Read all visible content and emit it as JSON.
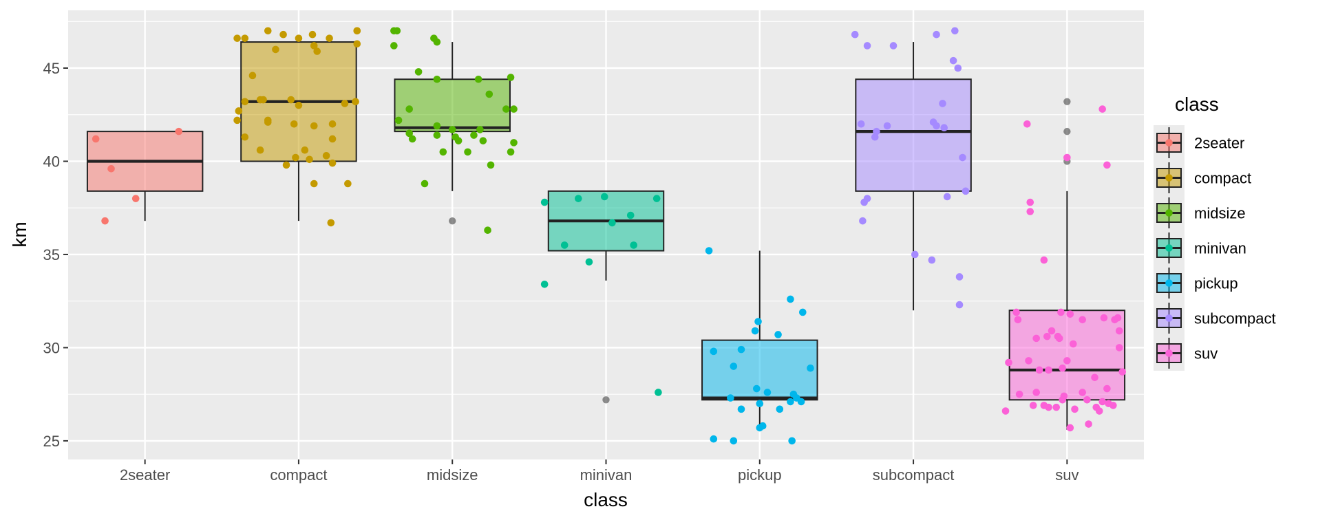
{
  "chart_data": {
    "type": "box",
    "xlabel": "class",
    "ylabel": "km",
    "ylim": [
      24.0,
      48.1
    ],
    "yticks": [
      25,
      30,
      35,
      40,
      45
    ],
    "grid": true,
    "legend": {
      "title": "class",
      "position": "right"
    },
    "categories": [
      "2seater",
      "compact",
      "midsize",
      "minivan",
      "pickup",
      "subcompact",
      "suv"
    ],
    "colors": {
      "2seater": "#F8766D",
      "compact": "#C49A00",
      "midsize": "#53B400",
      "minivan": "#00C094",
      "pickup": "#00B6EB",
      "subcompact": "#A58AFF",
      "suv": "#FB61D7"
    },
    "boxes": [
      {
        "class": "2seater",
        "q1": 38.4,
        "median": 40.0,
        "q3": 41.6,
        "whisker_low": 36.8,
        "whisker_high": 41.6,
        "outliers": []
      },
      {
        "class": "compact",
        "q1": 40.0,
        "median": 43.2,
        "q3": 46.4,
        "whisker_low": 36.8,
        "whisker_high": 46.4,
        "outliers": []
      },
      {
        "class": "midsize",
        "q1": 41.6,
        "median": 41.8,
        "q3": 44.4,
        "whisker_low": 38.4,
        "whisker_high": 46.4,
        "outliers": [
          36.8
        ]
      },
      {
        "class": "minivan",
        "q1": 35.2,
        "median": 36.8,
        "q3": 38.4,
        "whisker_low": 33.6,
        "whisker_high": 38.4,
        "outliers": [
          27.2
        ]
      },
      {
        "class": "pickup",
        "q1": 27.2,
        "median": 27.3,
        "q3": 30.4,
        "whisker_low": 25.6,
        "whisker_high": 35.2,
        "outliers": []
      },
      {
        "class": "subcompact",
        "q1": 38.4,
        "median": 41.6,
        "q3": 44.4,
        "whisker_low": 32.0,
        "whisker_high": 46.4,
        "outliers": []
      },
      {
        "class": "suv",
        "q1": 27.2,
        "median": 28.8,
        "q3": 32.0,
        "whisker_low": 25.6,
        "whisker_high": 38.4,
        "outliers": [
          43.2,
          41.6,
          40.0
        ]
      }
    ],
    "points": {
      "2seater": [
        [
          -0.32,
          41.2
        ],
        [
          0.22,
          41.6
        ],
        [
          -0.22,
          39.6
        ],
        [
          -0.06,
          38.0
        ],
        [
          -0.26,
          36.8
        ]
      ],
      "compact": [
        [
          -0.2,
          47.0
        ],
        [
          -0.1,
          46.8
        ],
        [
          0.09,
          46.8
        ],
        [
          0.0,
          46.6
        ],
        [
          0.2,
          46.6
        ],
        [
          -0.35,
          46.6
        ],
        [
          0.38,
          47.0
        ],
        [
          -0.4,
          46.6
        ],
        [
          0.38,
          47.0
        ],
        [
          0.1,
          46.2
        ],
        [
          0.38,
          46.3
        ],
        [
          0.12,
          45.9
        ],
        [
          -0.15,
          46.0
        ],
        [
          -0.3,
          44.6
        ],
        [
          -0.35,
          43.2
        ],
        [
          -0.25,
          43.3
        ],
        [
          -0.23,
          43.3
        ],
        [
          -0.05,
          43.3
        ],
        [
          0.0,
          43.0
        ],
        [
          0.3,
          43.1
        ],
        [
          0.37,
          43.2
        ],
        [
          -0.39,
          42.7
        ],
        [
          -0.4,
          42.2
        ],
        [
          -0.2,
          42.2
        ],
        [
          -0.2,
          42.1
        ],
        [
          -0.03,
          42.0
        ],
        [
          0.1,
          41.9
        ],
        [
          0.22,
          42.0
        ],
        [
          -0.35,
          41.3
        ],
        [
          0.22,
          41.2
        ],
        [
          -0.25,
          40.6
        ],
        [
          0.04,
          40.6
        ],
        [
          -0.02,
          40.2
        ],
        [
          0.07,
          40.1
        ],
        [
          0.18,
          40.3
        ],
        [
          0.22,
          39.9
        ],
        [
          -0.08,
          39.8
        ],
        [
          0.1,
          38.8
        ],
        [
          0.32,
          38.8
        ],
        [
          0.21,
          36.7
        ]
      ],
      "midsize": [
        [
          -0.36,
          47.0
        ],
        [
          -0.38,
          47.0
        ],
        [
          -0.12,
          46.6
        ],
        [
          -0.1,
          46.4
        ],
        [
          -0.38,
          46.2
        ],
        [
          -0.22,
          44.8
        ],
        [
          -0.1,
          44.4
        ],
        [
          0.17,
          44.4
        ],
        [
          0.38,
          44.5
        ],
        [
          0.24,
          43.6
        ],
        [
          -0.28,
          42.8
        ],
        [
          -0.35,
          42.2
        ],
        [
          0.35,
          42.8
        ],
        [
          0.4,
          42.8
        ],
        [
          -0.1,
          41.9
        ],
        [
          0.0,
          41.7
        ],
        [
          0.18,
          41.7
        ],
        [
          -0.28,
          41.5
        ],
        [
          -0.26,
          41.2
        ],
        [
          0.02,
          41.3
        ],
        [
          -0.1,
          41.4
        ],
        [
          0.14,
          41.4
        ],
        [
          0.04,
          41.1
        ],
        [
          0.2,
          41.1
        ],
        [
          0.4,
          41.0
        ],
        [
          -0.06,
          40.5
        ],
        [
          0.1,
          40.5
        ],
        [
          0.38,
          40.5
        ],
        [
          0.25,
          39.8
        ],
        [
          -0.18,
          38.8
        ],
        [
          0.23,
          36.3
        ]
      ],
      "minivan": [
        [
          -0.4,
          37.8
        ],
        [
          -0.18,
          38.0
        ],
        [
          -0.01,
          38.1
        ],
        [
          0.16,
          37.1
        ],
        [
          0.33,
          38.0
        ],
        [
          0.04,
          36.7
        ],
        [
          -0.27,
          35.5
        ],
        [
          0.18,
          35.5
        ],
        [
          -0.11,
          34.6
        ],
        [
          -0.4,
          33.4
        ],
        [
          0.34,
          27.6
        ]
      ],
      "pickup": [
        [
          -0.33,
          35.2
        ],
        [
          -0.01,
          31.4
        ],
        [
          0.2,
          32.6
        ],
        [
          0.28,
          31.9
        ],
        [
          -0.03,
          30.9
        ],
        [
          0.12,
          30.7
        ],
        [
          -0.3,
          29.8
        ],
        [
          -0.12,
          29.9
        ],
        [
          -0.17,
          29.0
        ],
        [
          0.33,
          28.9
        ],
        [
          -0.02,
          27.8
        ],
        [
          0.05,
          27.6
        ],
        [
          0.22,
          27.5
        ],
        [
          0.24,
          27.3
        ],
        [
          -0.19,
          27.3
        ],
        [
          0.27,
          27.1
        ],
        [
          0.2,
          27.1
        ],
        [
          0.0,
          27.0
        ],
        [
          -0.12,
          26.7
        ],
        [
          0.13,
          26.7
        ],
        [
          0.02,
          25.8
        ],
        [
          0.0,
          25.7
        ],
        [
          -0.3,
          25.1
        ],
        [
          -0.17,
          25.0
        ],
        [
          0.21,
          25.0
        ]
      ],
      "subcompact": [
        [
          -0.38,
          46.8
        ],
        [
          -0.3,
          46.2
        ],
        [
          -0.13,
          46.2
        ],
        [
          0.15,
          46.8
        ],
        [
          0.27,
          47.0
        ],
        [
          0.26,
          45.4
        ],
        [
          0.29,
          45.0
        ],
        [
          0.19,
          43.1
        ],
        [
          -0.34,
          42.0
        ],
        [
          -0.24,
          41.6
        ],
        [
          -0.25,
          41.3
        ],
        [
          -0.17,
          41.9
        ],
        [
          0.13,
          42.1
        ],
        [
          0.15,
          41.9
        ],
        [
          0.2,
          41.8
        ],
        [
          0.32,
          40.2
        ],
        [
          0.34,
          38.4
        ],
        [
          0.22,
          38.1
        ],
        [
          -0.3,
          38.0
        ],
        [
          -0.32,
          37.8
        ],
        [
          -0.33,
          36.8
        ],
        [
          0.01,
          35.0
        ],
        [
          0.12,
          34.7
        ],
        [
          0.3,
          33.8
        ],
        [
          0.3,
          32.3
        ]
      ],
      "suv": [
        [
          -0.26,
          42.0
        ],
        [
          0.23,
          42.8
        ],
        [
          0.0,
          40.2
        ],
        [
          0.26,
          39.8
        ],
        [
          -0.24,
          37.8
        ],
        [
          -0.24,
          37.3
        ],
        [
          -0.15,
          34.7
        ],
        [
          -0.38,
          29.2
        ],
        [
          -0.32,
          31.5
        ],
        [
          -0.33,
          31.9
        ],
        [
          -0.04,
          31.9
        ],
        [
          0.02,
          31.8
        ],
        [
          0.1,
          31.5
        ],
        [
          0.24,
          31.6
        ],
        [
          0.31,
          31.5
        ],
        [
          0.33,
          31.6
        ],
        [
          0.34,
          30.9
        ],
        [
          -0.2,
          30.5
        ],
        [
          -0.13,
          30.6
        ],
        [
          -0.1,
          30.9
        ],
        [
          -0.05,
          30.5
        ],
        [
          -0.06,
          30.6
        ],
        [
          0.0,
          29.3
        ],
        [
          0.04,
          30.2
        ],
        [
          0.34,
          30.0
        ],
        [
          -0.25,
          29.3
        ],
        [
          -0.18,
          28.8
        ],
        [
          -0.12,
          28.8
        ],
        [
          -0.03,
          28.9
        ],
        [
          0.18,
          28.4
        ],
        [
          0.26,
          27.8
        ],
        [
          0.36,
          28.7
        ],
        [
          -0.31,
          27.5
        ],
        [
          -0.2,
          27.6
        ],
        [
          -0.02,
          27.4
        ],
        [
          -0.03,
          27.2
        ],
        [
          0.1,
          27.6
        ],
        [
          0.13,
          27.2
        ],
        [
          0.23,
          27.1
        ],
        [
          0.27,
          27.0
        ],
        [
          0.3,
          26.9
        ],
        [
          -0.22,
          26.9
        ],
        [
          -0.15,
          26.9
        ],
        [
          -0.12,
          26.8
        ],
        [
          -0.07,
          26.8
        ],
        [
          0.05,
          26.7
        ],
        [
          0.19,
          26.8
        ],
        [
          0.21,
          26.6
        ],
        [
          -0.4,
          26.6
        ],
        [
          0.14,
          25.9
        ],
        [
          0.02,
          25.7
        ]
      ]
    }
  }
}
